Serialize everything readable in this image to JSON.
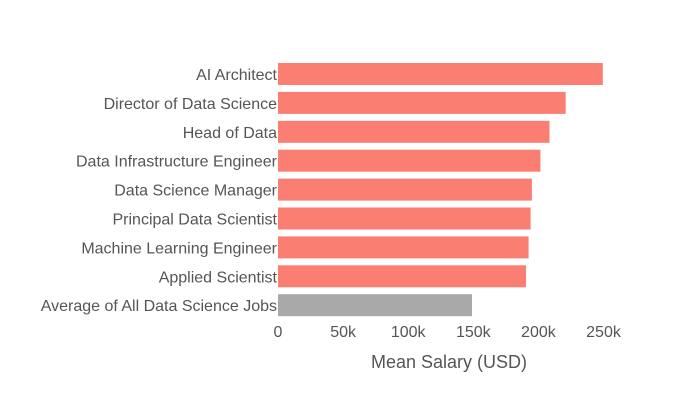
{
  "chart_data": {
    "type": "bar",
    "orientation": "horizontal",
    "categories": [
      "AI Architect",
      "Director of Data Science",
      "Head of Data",
      "Data Infrastructure Engineer",
      "Data Science Manager",
      "Principal Data Scientist",
      "Machine Learning Engineer",
      "Applied Scientist",
      "Average of All Data Science Jobs"
    ],
    "values": [
      249500,
      221000,
      208500,
      201500,
      195000,
      194000,
      192500,
      190500,
      149000
    ],
    "bar_colors": [
      "#fa7f72",
      "#fa7f72",
      "#fa7f72",
      "#fa7f72",
      "#fa7f72",
      "#fa7f72",
      "#fa7f72",
      "#fa7f72",
      "#a9a9a9"
    ],
    "xlabel": "Mean Salary (USD)",
    "ylabel": "",
    "title": "",
    "xlim": [
      0,
      265000
    ],
    "xticks": [
      0,
      50000,
      100000,
      150000,
      200000,
      250000
    ],
    "xtick_labels": [
      "0",
      "50k",
      "100k",
      "150k",
      "200k",
      "250k"
    ],
    "grid": false,
    "legend": "none"
  },
  "colors": {
    "highlight": "#fa7f72",
    "baseline": "#a9a9a9",
    "text": "#555555",
    "background": "#ffffff"
  }
}
